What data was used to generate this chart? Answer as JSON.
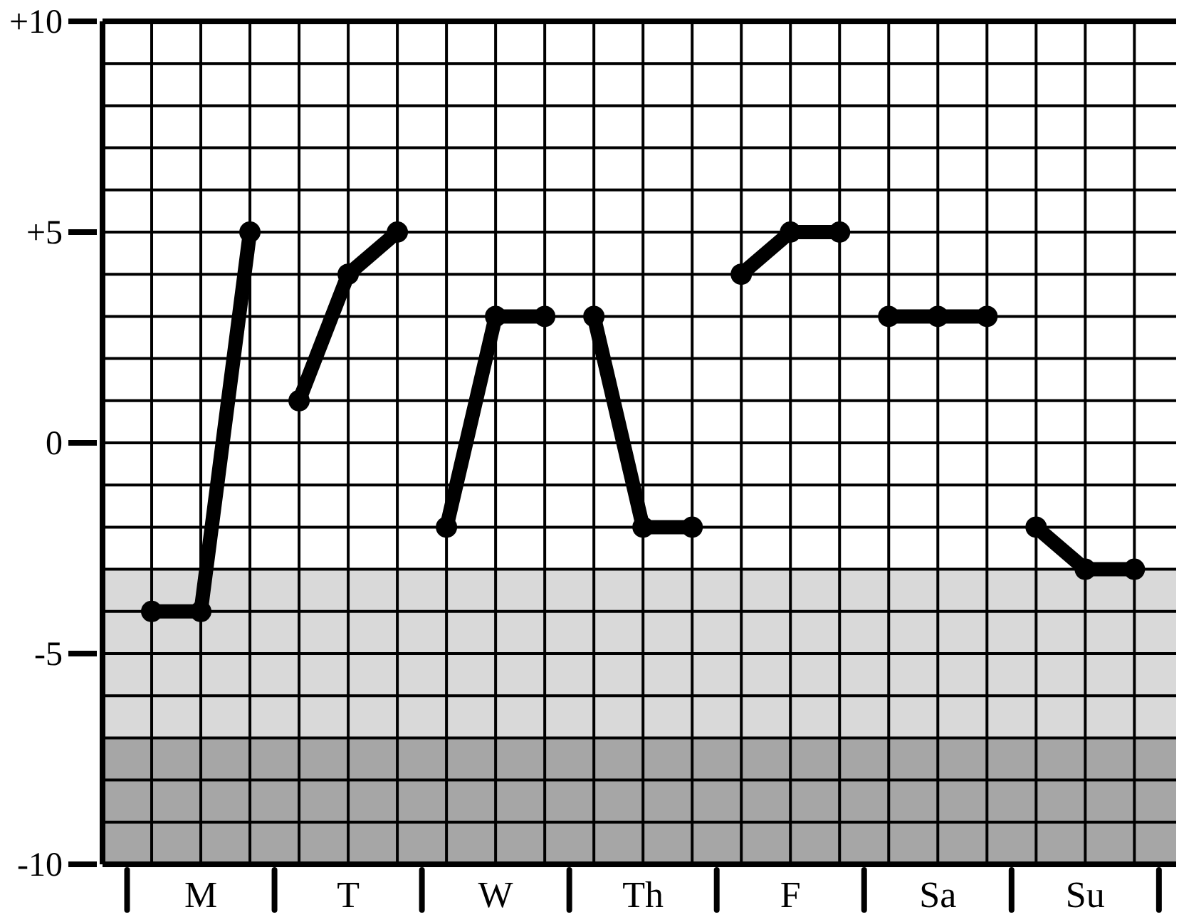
{
  "chart_data": {
    "type": "line",
    "categories": [
      null,
      "M",
      null,
      null,
      "T",
      null,
      null,
      "W",
      null,
      null,
      "Th",
      null,
      null,
      "F",
      null,
      null,
      "Sa",
      null,
      null,
      "Su",
      null
    ],
    "ylim": [
      -10,
      10
    ],
    "yticks": [
      {
        "value": 10,
        "label": "+10"
      },
      {
        "value": 5,
        "label": "+5"
      },
      0,
      -5,
      -10
    ],
    "grid": true,
    "marker": "circle",
    "line_style": "solid",
    "bands": [
      {
        "axis": "y",
        "from": -7,
        "to": -3,
        "color": "#d9d9d9"
      },
      {
        "axis": "y",
        "from": -10,
        "to": -7,
        "color": "#a6a6a6"
      }
    ],
    "series": [
      {
        "color": "#000000",
        "values": [
          -4,
          -4,
          5,
          null,
          null,
          null,
          null,
          null,
          null,
          null,
          null,
          null,
          null,
          null,
          null,
          null,
          null,
          null,
          null,
          null,
          null
        ]
      },
      {
        "color": "#000000",
        "values": [
          null,
          null,
          null,
          1,
          4,
          5,
          null,
          null,
          null,
          null,
          null,
          null,
          null,
          null,
          null,
          null,
          null,
          null,
          null,
          null,
          null
        ]
      },
      {
        "color": "#000000",
        "values": [
          null,
          null,
          null,
          null,
          null,
          null,
          -2,
          3,
          3,
          null,
          null,
          null,
          null,
          null,
          null,
          null,
          null,
          null,
          null,
          null,
          null
        ]
      },
      {
        "color": "#000000",
        "values": [
          null,
          null,
          null,
          null,
          null,
          null,
          null,
          null,
          null,
          3,
          -2,
          -2,
          null,
          null,
          null,
          null,
          null,
          null,
          null,
          null,
          null
        ]
      },
      {
        "color": "#000000",
        "values": [
          null,
          null,
          null,
          null,
          null,
          null,
          null,
          null,
          null,
          null,
          null,
          null,
          4,
          5,
          5,
          null,
          null,
          null,
          null,
          null,
          null
        ]
      },
      {
        "color": "#000000",
        "values": [
          null,
          null,
          null,
          null,
          null,
          null,
          null,
          null,
          null,
          null,
          null,
          null,
          null,
          null,
          null,
          3,
          3,
          3,
          null,
          null,
          null
        ]
      },
      {
        "color": "#000000",
        "values": [
          null,
          null,
          null,
          null,
          null,
          null,
          null,
          null,
          null,
          null,
          null,
          null,
          null,
          null,
          null,
          null,
          null,
          null,
          -2,
          -3,
          -3
        ]
      }
    ]
  }
}
